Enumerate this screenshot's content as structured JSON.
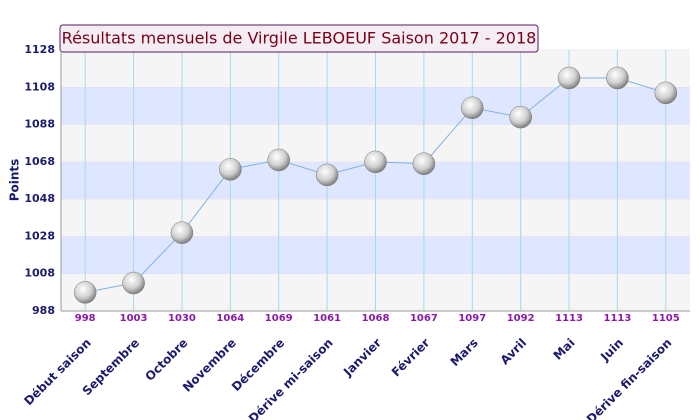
{
  "chart_data": {
    "type": "line",
    "title": "Résultats mensuels de Virgile LEBOEUF Saison 2017 - 2018",
    "y_label": "Points",
    "categories": [
      "Début saison",
      "Septembre",
      "Octobre",
      "Novembre",
      "Décembre",
      "Dérive mi-saison",
      "Janvier",
      "Février",
      "Mars",
      "Avril",
      "Mai",
      "Juin",
      "Dérive fin-saison"
    ],
    "values": [
      998,
      1003,
      1030,
      1064,
      1069,
      1061,
      1068,
      1067,
      1097,
      1092,
      1113,
      1113,
      1105
    ],
    "color": "#7fb2e5",
    "ylim": [
      988,
      1128
    ],
    "yticks": [
      988,
      1008,
      1028,
      1048,
      1068,
      1088,
      1108,
      1128
    ],
    "grid": true
  }
}
